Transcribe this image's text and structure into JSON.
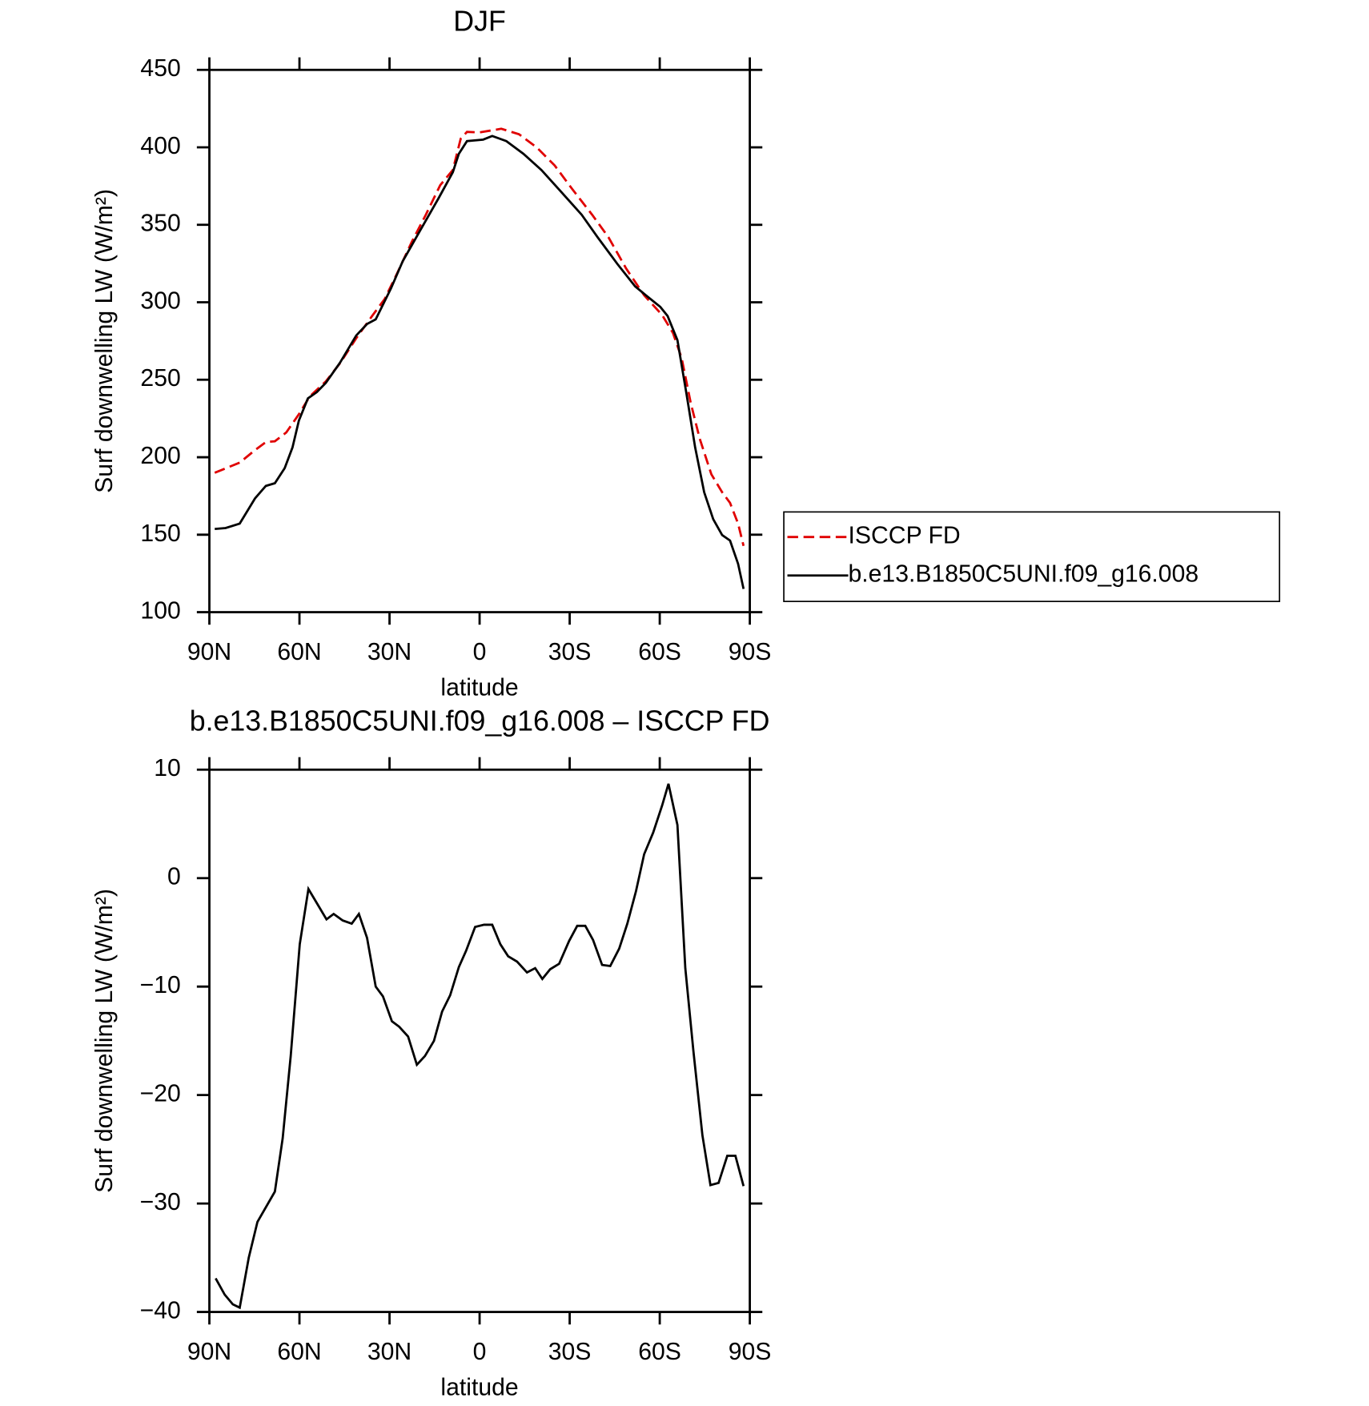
{
  "chart_data": [
    {
      "type": "line",
      "title": "DJF",
      "xlabel": "latitude",
      "ylabel": "Surf downwelling LW (W/m²)",
      "xlim": [
        90,
        -90
      ],
      "xticks": [
        {
          "value": 90,
          "label": "90N"
        },
        {
          "value": 60,
          "label": "60N"
        },
        {
          "value": 30,
          "label": "30N"
        },
        0,
        {
          "value": -30,
          "label": "30S"
        },
        {
          "value": -60,
          "label": "60S"
        },
        {
          "value": -90,
          "label": "90S"
        }
      ],
      "ylim": [
        100,
        450
      ],
      "yticks": [
        100,
        150,
        200,
        250,
        300,
        350,
        400,
        450
      ],
      "legend": "right",
      "series": [
        {
          "name": "ISCCP FD",
          "color": "#e00000",
          "linestyle": "dashed",
          "x": [
            88.2,
            79.9,
            74.8,
            71.2,
            68.2,
            64.4,
            60.2,
            56.6,
            51.2,
            46.5,
            41.1,
            35.8,
            31.6,
            27.4,
            22.6,
            17.9,
            13.1,
            8.9,
            6.3,
            4.2,
            0,
            -7.2,
            -13.1,
            -19.1,
            -25,
            -31,
            -37.5,
            -42.9,
            -48.8,
            -54.8,
            -60.8,
            -64.4,
            -67.3,
            -70.3,
            -73.3,
            -77.2,
            -80.8,
            -83.4,
            -86.1,
            -87.9
          ],
          "values": [
            190,
            196.5,
            204.6,
            209.8,
            210.3,
            216,
            227.7,
            239.2,
            249,
            260.6,
            276.8,
            291.2,
            302.2,
            319,
            339,
            356.5,
            375.6,
            385.4,
            405.6,
            410,
            409.6,
            412,
            408.5,
            399.8,
            388.3,
            372.7,
            356.5,
            342,
            321.8,
            304.5,
            291.8,
            280.2,
            264,
            235.2,
            212,
            189,
            177.4,
            170.5,
            157.2,
            142.8
          ]
        },
        {
          "name": "b.e13.B1850C5UNI.f09_g16.008",
          "color": "#000000",
          "linestyle": "solid",
          "x": [
            88.2,
            84.6,
            79.9,
            74.8,
            71.2,
            68.2,
            64.9,
            62.3,
            60.2,
            57.2,
            54.2,
            51.2,
            46.5,
            41.1,
            37.5,
            34.6,
            29.5,
            25.6,
            19.7,
            13.7,
            8.9,
            6.9,
            4.2,
            -1.2,
            -4.2,
            -8.9,
            -14.6,
            -20.6,
            -26.5,
            -34,
            -39.3,
            -45.9,
            -51.8,
            -55.4,
            -60.2,
            -62.6,
            -65.9,
            -68.9,
            -71.8,
            -74.8,
            -77.8,
            -80.8,
            -83.4,
            -86.1,
            -87.9
          ],
          "values": [
            153.7,
            154.3,
            157.2,
            173.4,
            181.5,
            183.2,
            193,
            206.3,
            223.6,
            238,
            242,
            248,
            261,
            278.5,
            286,
            289,
            309,
            326.5,
            346.7,
            367,
            384,
            395.8,
            404,
            405,
            407.3,
            404,
            395.8,
            385.4,
            372.7,
            356.5,
            342,
            324.7,
            310.3,
            304.5,
            297,
            291.2,
            275.6,
            241,
            206.3,
            177.4,
            160,
            149.7,
            146.2,
            131.2,
            115
          ]
        }
      ]
    },
    {
      "type": "line",
      "title": "b.e13.B1850C5UNI.f09_g16.008 – ISCCP FD",
      "xlabel": "latitude",
      "ylabel": "Surf downwelling LW (W/m²)",
      "xlim": [
        90,
        -90
      ],
      "xticks": [
        {
          "value": 90,
          "label": "90N"
        },
        {
          "value": 60,
          "label": "60N"
        },
        {
          "value": 30,
          "label": "30N"
        },
        0,
        {
          "value": -30,
          "label": "30S"
        },
        {
          "value": -60,
          "label": "60S"
        },
        {
          "value": -90,
          "label": "90S"
        }
      ],
      "ylim": [
        -40,
        10
      ],
      "yticks": [
        {
          "value": -40,
          "label": "−40"
        },
        {
          "value": -30,
          "label": "−30"
        },
        {
          "value": -20,
          "label": "−20"
        },
        {
          "value": -10,
          "label": "−10"
        },
        0,
        10
      ],
      "color": "#000000",
      "x": [
        87.9,
        84.9,
        82.2,
        79.9,
        76.9,
        74,
        68.2,
        65.6,
        62.9,
        59.9,
        57,
        54,
        51,
        48.6,
        45.6,
        42.6,
        40.2,
        37.5,
        34.6,
        32.2,
        29.2,
        26.8,
        23.8,
        20.9,
        18.2,
        15.2,
        12.5,
        9.8,
        6.9,
        4.5,
        1.5,
        -1.5,
        -4.2,
        -6.9,
        -9.5,
        -12.5,
        -15.8,
        -18.5,
        -20.9,
        -23.5,
        -26.5,
        -29.8,
        -32.5,
        -35.2,
        -37.8,
        -40.8,
        -43.5,
        -46.5,
        -49.2,
        -52.1,
        -54.8,
        -57.8,
        -60.8,
        -62.9,
        -65.9,
        -68.5,
        -71.2,
        -74.2,
        -76.9,
        -79.6,
        -82.5,
        -85.2,
        -87.9
      ],
      "values": [
        -36.9,
        -38.4,
        -39.3,
        -39.6,
        -35,
        -31.7,
        -28.9,
        -24,
        -16.4,
        -6.1,
        -1,
        -2.4,
        -3.8,
        -3.3,
        -3.9,
        -4.2,
        -3.3,
        -5.5,
        -10,
        -10.9,
        -13.2,
        -13.7,
        -14.6,
        -17.2,
        -16.4,
        -15,
        -12.3,
        -10.8,
        -8.2,
        -6.7,
        -4.5,
        -4.3,
        -4.3,
        -6.1,
        -7.2,
        -7.7,
        -8.7,
        -8.3,
        -9.3,
        -8.4,
        -7.9,
        -5.8,
        -4.4,
        -4.4,
        -5.7,
        -8,
        -8.1,
        -6.5,
        -4.2,
        -1.2,
        2.2,
        4.2,
        6.7,
        8.7,
        4.9,
        -8.3,
        -15.9,
        -23.7,
        -28.3,
        -28.1,
        -25.6,
        -25.6,
        -28.4
      ]
    }
  ]
}
